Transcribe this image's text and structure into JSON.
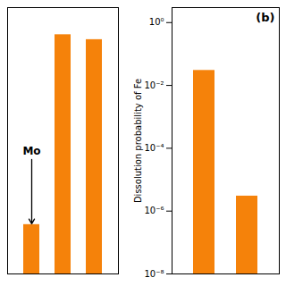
{
  "chart_data": [
    {
      "type": "bar",
      "categories": [
        null,
        null,
        null
      ],
      "values": [
        0.2,
        0.97,
        0.95
      ],
      "color": "#F5820A",
      "ylim": [
        0,
        1.08
      ],
      "tick_labels": false,
      "annotations": [
        "Mo"
      ]
    },
    {
      "type": "bar",
      "categories": [
        null,
        null
      ],
      "values": [
        0.03,
        3e-06
      ],
      "color": "#F5820A",
      "log": "y",
      "ylim": [
        1e-08,
        3.0
      ],
      "yticks": [
        {
          "value": 1e-08,
          "label": "10⁻⁸"
        },
        {
          "value": 1e-06,
          "label": "10⁻⁶"
        },
        {
          "value": 0.0001,
          "label": "10⁻⁴"
        },
        {
          "value": 0.01,
          "label": "10⁻²"
        },
        {
          "value": 1.0,
          "label": "10⁰"
        }
      ],
      "ylabel": "Dissolution probability of Fe",
      "tick_labels": "y",
      "annotations": [
        "(b)"
      ]
    }
  ]
}
